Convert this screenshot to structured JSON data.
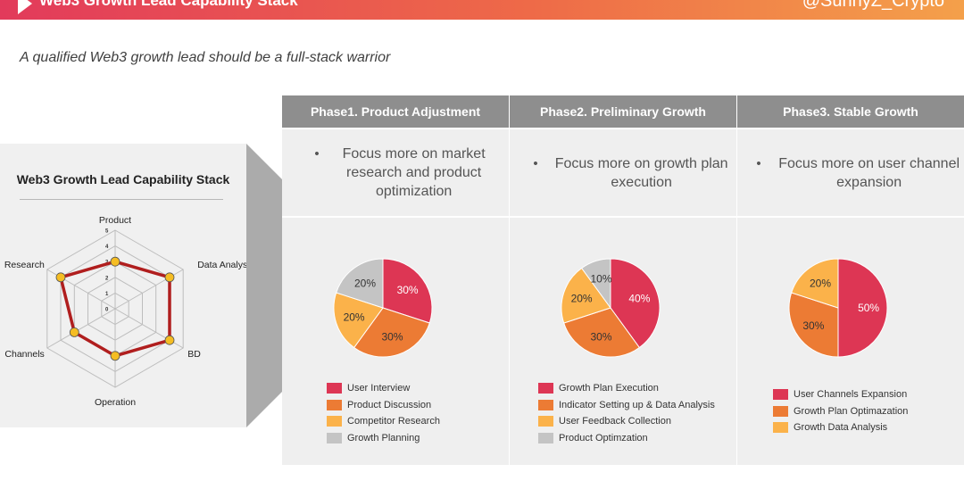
{
  "header": {
    "title": "Web3 Growth Lead Capability Stack",
    "handle": "@SunnyZ_Crypto"
  },
  "subtitle": "A qualified Web3 growth lead should be a full-stack warrior",
  "colors": {
    "red": "#dd3654",
    "orange": "#ec7b34",
    "yellow": "#fbb24a",
    "gray": "#c4c4c4",
    "header_gray": "#8e8e8e",
    "radar_line": "#b01e1e",
    "radar_point": "#f5bd23"
  },
  "chart_data": [
    {
      "type": "radar",
      "title": "Web3 Growth Lead  Capability Stack",
      "axes": [
        "Product",
        "Data Analysis",
        "BD",
        "Operation",
        "Channels",
        "Research"
      ],
      "scale_ticks": [
        "0",
        "1",
        "2",
        "3",
        "4",
        "5"
      ],
      "range": [
        0,
        5
      ],
      "values": [
        3,
        4,
        4,
        3,
        3,
        4
      ]
    },
    {
      "type": "pie",
      "title": "Phase1. Product Adjustment",
      "focus": "Focus more on market research and product optimization",
      "categories": [
        "User Interview",
        "Product Discussion",
        "Competitor Research",
        "Growth Planning"
      ],
      "values": [
        30,
        30,
        20,
        20
      ],
      "labels": [
        "30%",
        "30%",
        "20%",
        "20%"
      ],
      "colors": [
        "#dd3654",
        "#ec7b34",
        "#fbb24a",
        "#c4c4c4"
      ]
    },
    {
      "type": "pie",
      "title": "Phase2. Preliminary Growth",
      "focus": "Focus more on growth plan execution",
      "categories": [
        "Growth Plan Execution",
        "Indicator Setting up & Data Analysis",
        "User Feedback Collection",
        "Product Optimzation"
      ],
      "values": [
        40,
        30,
        20,
        10
      ],
      "labels": [
        "40%",
        "30%",
        "20%",
        "10%"
      ],
      "colors": [
        "#dd3654",
        "#ec7b34",
        "#fbb24a",
        "#c4c4c4"
      ]
    },
    {
      "type": "pie",
      "title": "Phase3. Stable Growth",
      "focus": "Focus more on user channel expansion",
      "categories": [
        "User Channels Expansion",
        "Growth Plan Optimazation",
        "Growth Data Analysis"
      ],
      "values": [
        50,
        30,
        20
      ],
      "labels": [
        "50%",
        "30%",
        "20%"
      ],
      "colors": [
        "#dd3654",
        "#ec7b34",
        "#fbb24a"
      ]
    }
  ]
}
